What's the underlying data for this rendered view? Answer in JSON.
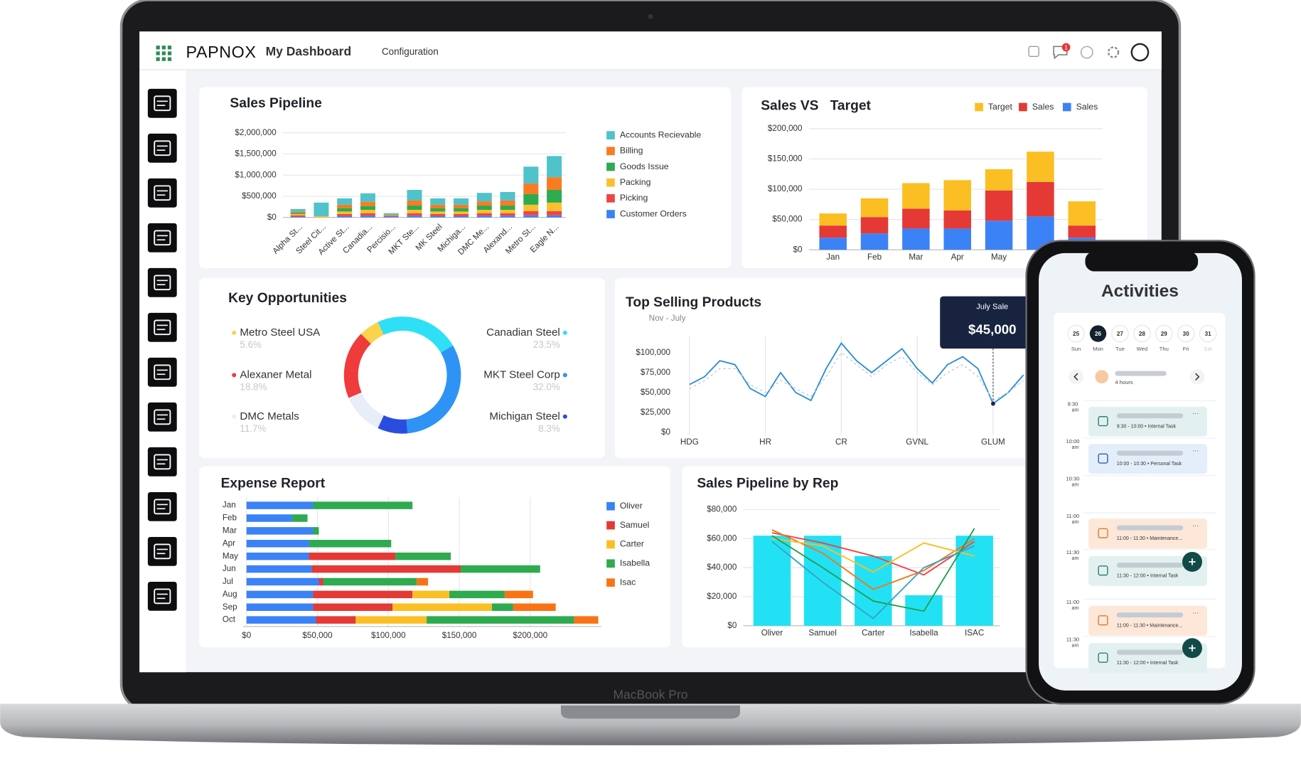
{
  "header": {
    "brand": "PAPNOX",
    "page": "My Dashboard",
    "menu": "Configuration",
    "notifications": 1
  },
  "device": "MacBook Pro",
  "chart_data": [
    {
      "type": "bar",
      "stacked": true,
      "title": "Sales Pipeline",
      "grid": true,
      "categories": [
        "Alpha St...",
        "Steel Cit...",
        "Active St...",
        "Canadia...",
        "Percisio...",
        "MKT Ste...",
        "MK Steel",
        "Michiga...",
        "DMC Me...",
        "Alexand...",
        "Metro St...",
        "Eagle N..."
      ],
      "ylim": [
        0,
        2000000
      ],
      "yticks": [
        {
          "value": 0,
          "label": "$0"
        },
        {
          "value": 500000,
          "label": "$500,000"
        },
        {
          "value": 1000000,
          "label": "$1,000,000"
        },
        {
          "value": 1500000,
          "label": "$1,500,000"
        },
        {
          "value": 2000000,
          "label": "$2,000,000"
        }
      ],
      "series": [
        {
          "name": "Accounts Recievable",
          "color": "#4fc3c9",
          "values": [
            60000,
            320000,
            150000,
            200000,
            30000,
            250000,
            150000,
            150000,
            200000,
            200000,
            400000,
            500000
          ]
        },
        {
          "name": "Billing",
          "color": "#f97b22",
          "values": [
            30000,
            0,
            80000,
            100000,
            10000,
            120000,
            80000,
            80000,
            100000,
            120000,
            250000,
            300000
          ]
        },
        {
          "name": "Goods Issue",
          "color": "#2eaa4f",
          "values": [
            30000,
            0,
            80000,
            90000,
            10000,
            100000,
            80000,
            80000,
            100000,
            100000,
            250000,
            300000
          ]
        },
        {
          "name": "Packing",
          "color": "#fbc02d",
          "values": [
            30000,
            30000,
            60000,
            80000,
            10000,
            80000,
            60000,
            60000,
            80000,
            80000,
            150000,
            200000
          ]
        },
        {
          "name": "Picking",
          "color": "#ef4444",
          "values": [
            30000,
            0,
            50000,
            60000,
            20000,
            60000,
            50000,
            50000,
            60000,
            60000,
            100000,
            100000
          ]
        },
        {
          "name": "Customer Orders",
          "color": "#3b82f6",
          "values": [
            20000,
            0,
            30000,
            40000,
            20000,
            40000,
            30000,
            30000,
            40000,
            40000,
            50000,
            50000
          ]
        }
      ]
    },
    {
      "type": "bar",
      "stacked": true,
      "title": "Sales VS   Target",
      "grid": true,
      "categories": [
        "Jan",
        "Feb",
        "Mar",
        "Apr",
        "May",
        null,
        null
      ],
      "ylim": [
        0,
        200000
      ],
      "yticks": [
        {
          "value": 0,
          "label": "$0"
        },
        {
          "value": 50000,
          "label": "$50,000"
        },
        {
          "value": 100000,
          "label": "$100,000"
        },
        {
          "value": 150000,
          "label": "$150,000"
        },
        {
          "value": 200000,
          "label": "$200,000"
        }
      ],
      "series": [
        {
          "name": "Target",
          "color": "#fbbf24",
          "values": [
            20000,
            31000,
            42000,
            50000,
            35000,
            50000,
            40000
          ]
        },
        {
          "name": "Sales",
          "color": "#e53935",
          "values": [
            20000,
            27000,
            33000,
            30000,
            50000,
            57000,
            20000
          ]
        },
        {
          "name": "Sales",
          "color": "#3b82f6",
          "values": [
            20000,
            27000,
            35000,
            35000,
            48000,
            55000,
            20000
          ]
        }
      ]
    },
    {
      "type": "pie",
      "title": "Key Opportunities",
      "categories": [
        "Canadian Steel",
        "MKT Steel Corp",
        "Michigan Steel",
        "DMC Metals",
        "Alexaner Metal",
        "Metro Steel USA"
      ],
      "values": [
        23.5,
        32,
        8.3,
        11.7,
        18.8,
        5.6
      ],
      "value_labels": [
        "23.5%",
        "32.0%",
        "8.3%",
        "11.7%",
        "18.8%",
        "5.6%"
      ],
      "colors": [
        "#2ee0f5",
        "#2f93f5",
        "#2a4de0",
        "#e8eef8",
        "#ef3b3b",
        "#fcd34d"
      ]
    },
    {
      "type": "line",
      "title": "Top Selling Products",
      "subtitle": "Nov - July",
      "grid": true,
      "categories": [
        "HDG",
        null,
        null,
        null,
        null,
        "HR",
        null,
        null,
        null,
        null,
        "CR",
        null,
        null,
        null,
        null,
        "GVNL",
        null,
        null,
        null,
        null,
        "GLUM",
        null,
        null
      ],
      "ylim": [
        0,
        120000
      ],
      "yticks": [
        {
          "value": 0,
          "label": "$0"
        },
        {
          "value": 25000,
          "label": "$25,000"
        },
        {
          "value": 50000,
          "label": "$50,000"
        },
        {
          "value": 75000,
          "label": "$75,000"
        },
        {
          "value": 100000,
          "label": "$100,000"
        }
      ],
      "series": [
        {
          "color": "#2b8fd6",
          "values": [
            60000,
            70000,
            90000,
            85000,
            55000,
            45000,
            75000,
            50000,
            40000,
            80000,
            112000,
            90000,
            75000,
            90000,
            105000,
            80000,
            62000,
            85000,
            95000,
            80000,
            36000,
            50000,
            72000
          ]
        },
        {
          "color": "#c7ccd4",
          "dash": true,
          "values": [
            55000,
            65000,
            80000,
            80000,
            60000,
            50000,
            65000,
            55000,
            45000,
            70000,
            100000,
            85000,
            70000,
            85000,
            95000,
            75000,
            60000,
            75000,
            85000,
            70000,
            40000,
            50000,
            65000
          ]
        }
      ],
      "annotation": {
        "title": "July Sale",
        "text": "$45,000"
      }
    },
    {
      "type": "bar",
      "orientation": "horizontal",
      "stacked": true,
      "title": "Expense Report",
      "grid": true,
      "categories": [
        "Jan",
        "Feb",
        "Mar",
        "Apr",
        "May",
        "Jun",
        "Jul",
        "Aug",
        "Sep",
        "Oct"
      ],
      "xlim": [
        0,
        250000
      ],
      "xticks": [
        {
          "value": 0,
          "label": "$0"
        },
        {
          "value": 50000,
          "label": "$50,000"
        },
        {
          "value": 100000,
          "label": "$100,000"
        },
        {
          "value": 150000,
          "label": "$150,000"
        },
        {
          "value": 200000,
          "label": "$200,000"
        }
      ],
      "series": [
        {
          "name": "Oliver",
          "color": "#3b82f6",
          "values": [
            47000,
            32000,
            47000,
            44000,
            44000,
            46000,
            51000,
            47000,
            47000,
            49000
          ]
        },
        {
          "name": "Samuel",
          "color": "#e53935",
          "values": [
            0,
            0,
            0,
            0,
            61000,
            105000,
            3000,
            70000,
            56000,
            28000
          ]
        },
        {
          "name": "Carter",
          "color": "#fbbf24",
          "values": [
            0,
            0,
            0,
            0,
            0,
            0,
            0,
            26000,
            70000,
            50000
          ]
        },
        {
          "name": "Isabella",
          "color": "#2eaa4f",
          "values": [
            70000,
            11000,
            4000,
            58000,
            39000,
            56000,
            66000,
            39000,
            15000,
            104000
          ]
        },
        {
          "name": "Isac",
          "color": "#f97316",
          "values": [
            0,
            0,
            0,
            0,
            0,
            0,
            8000,
            20000,
            30000,
            17000
          ]
        }
      ]
    },
    {
      "type": "bar",
      "title": "Sales Pipeline by Rep",
      "grid": true,
      "categories": [
        "Oliver",
        "Samuel",
        "Carter",
        "Isabella",
        "ISAC"
      ],
      "ylim": [
        0,
        80000
      ],
      "yticks": [
        {
          "value": 0,
          "label": "$0"
        },
        {
          "value": 20000,
          "label": "$20,000"
        },
        {
          "value": 40000,
          "label": "$40,000"
        },
        {
          "value": 60000,
          "label": "$60,000"
        },
        {
          "value": 80000,
          "label": "$80,000"
        }
      ],
      "series": [
        {
          "color": "#22e1f5",
          "values": [
            62000,
            62000,
            48000,
            21000,
            62000
          ]
        },
        {
          "type": "line",
          "color": "#ef4444",
          "values": [
            64000,
            57000,
            48000,
            35000,
            58000
          ]
        },
        {
          "type": "line",
          "color": "#f97316",
          "values": [
            66000,
            50000,
            25000,
            38000,
            60000
          ]
        },
        {
          "type": "line",
          "color": "#fbbf24",
          "values": [
            60000,
            55000,
            37000,
            57000,
            48000
          ]
        },
        {
          "type": "line",
          "color": "#22a04b",
          "values": [
            62000,
            40000,
            17000,
            10000,
            67000
          ]
        },
        {
          "type": "line",
          "color": "#38a3c4",
          "values": [
            58000,
            30000,
            5000,
            40000,
            55000
          ]
        }
      ]
    }
  ],
  "phone": {
    "title": "Activities",
    "days": [
      {
        "num": 25,
        "day": "Sun"
      },
      {
        "num": 26,
        "day": "Mon"
      },
      {
        "num": 27,
        "day": "Tue"
      },
      {
        "num": 28,
        "day": "Wed"
      },
      {
        "num": 29,
        "day": "Thu"
      },
      {
        "num": 30,
        "day": "Fri"
      },
      {
        "num": 31,
        "day": "Sat"
      }
    ],
    "duration": "4 hours",
    "times": [
      {
        "time": "9:30",
        "period": "am"
      },
      {
        "time": "10:00",
        "period": "am"
      },
      {
        "time": "10:30",
        "period": "am"
      },
      {
        "time": "11:00",
        "period": "am"
      },
      {
        "time": "11:30",
        "period": "am"
      },
      {
        "time": "11:00",
        "period": "am"
      },
      {
        "time": "11:30",
        "period": "am"
      }
    ],
    "tasks": [
      "9:30 - 10:00 • Internal Task",
      "10:00 - 10:30 • Personal Task",
      "11:00 - 11:30 • Maintenance...",
      "11:30 - 12:00 • Internal Task",
      "11:00 - 11:30 • Maintenance...",
      "11:30 - 12:00 • Internal Task"
    ]
  }
}
